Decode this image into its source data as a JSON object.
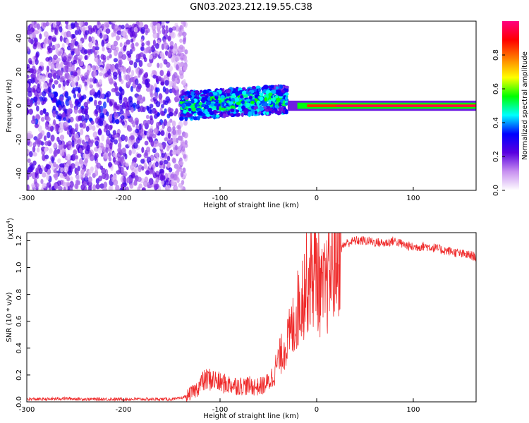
{
  "figure_title": "GN03.2023.212.19.55.C38",
  "chart_data": [
    {
      "type": "heatmap",
      "title": "",
      "xlabel": "Height of straight line (km)",
      "ylabel": "Frequency (Hz)",
      "xlim": [
        -300,
        165
      ],
      "ylim": [
        -50,
        50
      ],
      "x_ticks": [
        -300,
        -200,
        -100,
        0,
        100
      ],
      "y_ticks": [
        -40,
        -20,
        0,
        20,
        40
      ],
      "grid": false,
      "colorbar": {
        "label": "Normalized spectral amplitude",
        "range": [
          0.0,
          1.0
        ],
        "ticks": [
          "0.0",
          "0.2",
          "0.4",
          "0.6",
          "0.8"
        ],
        "colors": [
          "#ffffff",
          "#c890f0",
          "#5a00e0",
          "#0000ff",
          "#00ffff",
          "#00ff00",
          "#ffff00",
          "#ff8000",
          "#ff0000",
          "#ff0080"
        ]
      },
      "regions": [
        {
          "x_range": [
            -300,
            -140
          ],
          "description_amplitude": 0.1,
          "frequency_spread": [
            -50,
            50
          ]
        },
        {
          "x_range": [
            -140,
            -30
          ],
          "description_amplitude": 0.3,
          "frequency_spread": [
            -10,
            12
          ]
        },
        {
          "x_range": [
            -30,
            165
          ],
          "description_amplitude": 1.0,
          "frequency_spread": [
            -3,
            3
          ]
        }
      ]
    },
    {
      "type": "line",
      "title": "",
      "xlabel": "Height of straight line (km)",
      "ylabel": "SNR (10 * v/v)",
      "y_multiplier": "(x10",
      "y_multiplier_exp": "4",
      "y_multiplier_close": ")",
      "xlim": [
        -300,
        165
      ],
      "ylim": [
        0,
        1.26
      ],
      "x_ticks": [
        -300,
        -200,
        -100,
        0,
        100
      ],
      "y_ticks": [
        "0.0",
        "0.2",
        "0.4",
        "0.6",
        "0.8",
        "1.0",
        "1.2"
      ],
      "grid": false,
      "color": "#ef2b2b",
      "series": [
        {
          "x": [
            -300,
            -280,
            -260,
            -240,
            -220,
            -200,
            -180,
            -160,
            -145,
            -135,
            -125,
            -118,
            -112,
            -105,
            -100,
            -90,
            -80,
            -70,
            -60,
            -50,
            -45,
            -40,
            -35,
            -30,
            -25,
            -20,
            -15,
            -10,
            -5,
            0,
            5,
            10,
            15,
            20,
            25,
            30,
            40,
            50,
            60,
            70,
            80,
            90,
            100,
            110,
            120,
            130,
            140,
            150,
            160,
            165
          ],
          "y": [
            0.02,
            0.02,
            0.025,
            0.02,
            0.02,
            0.02,
            0.02,
            0.02,
            0.02,
            0.04,
            0.09,
            0.15,
            0.17,
            0.16,
            0.14,
            0.13,
            0.12,
            0.12,
            0.11,
            0.14,
            0.2,
            0.3,
            0.38,
            0.45,
            0.55,
            0.68,
            0.8,
            0.9,
            0.95,
            0.98,
            0.8,
            0.85,
            1.0,
            1.08,
            1.14,
            1.18,
            1.2,
            1.2,
            1.19,
            1.18,
            1.2,
            1.17,
            1.15,
            1.16,
            1.15,
            1.13,
            1.12,
            1.1,
            1.09,
            1.08
          ]
        }
      ]
    }
  ]
}
